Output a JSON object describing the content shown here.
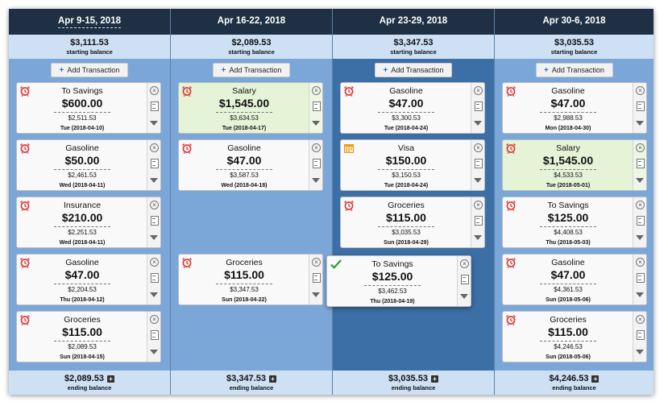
{
  "columns": [
    {
      "header": "Apr 9-15, 2018",
      "starting_balance": "$3,111.53",
      "starting_label": "starting balance",
      "add_label": "Add Transaction",
      "ending_balance": "$2,089.53",
      "ending_label": "ending balance",
      "cards": [
        {
          "name": "To Savings",
          "amount": "$600.00",
          "balance": "$2,511.53",
          "date": "Tue (2018-04-10)",
          "icon": "alarm-icon",
          "color": "default"
        },
        {
          "name": "Gasoline",
          "amount": "$50.00",
          "balance": "$2,461.53",
          "date": "Wed (2018-04-11)",
          "icon": "alarm-icon",
          "color": "default"
        },
        {
          "name": "Insurance",
          "amount": "$210.00",
          "balance": "$2,251.53",
          "date": "Wed (2018-04-11)",
          "icon": "alarm-icon",
          "color": "default"
        },
        {
          "name": "Gasoline",
          "amount": "$47.00",
          "balance": "$2,204.53",
          "date": "Thu (2018-04-12)",
          "icon": "alarm-icon",
          "color": "default"
        },
        {
          "name": "Groceries",
          "amount": "$115.00",
          "balance": "$2,089.53",
          "date": "Sun (2018-04-15)",
          "icon": "alarm-icon",
          "color": "default"
        }
      ]
    },
    {
      "header": "Apr 16-22, 2018",
      "starting_balance": "$2,089.53",
      "starting_label": "starting balance",
      "add_label": "Add Transaction",
      "ending_balance": "$3,347.53",
      "ending_label": "ending balance",
      "cards": [
        {
          "name": "Salary",
          "amount": "$1,545.00",
          "balance": "$3,634.53",
          "date": "Tue (2018-04-17)",
          "icon": "alarm-icon",
          "color": "green"
        },
        {
          "name": "Gasoline",
          "amount": "$47.00",
          "balance": "$3,587.53",
          "date": "Wed (2018-04-18)",
          "icon": "alarm-icon",
          "color": "default"
        },
        {
          "name": "Groceries",
          "amount": "$115.00",
          "balance": "$3,347.53",
          "date": "Sun (2018-04-22)",
          "icon": "alarm-icon",
          "color": "default"
        }
      ]
    },
    {
      "header": "Apr 23-29, 2018",
      "starting_balance": "$3,347.53",
      "starting_label": "starting balance",
      "add_label": "Add Transaction",
      "ending_balance": "$3,035.53",
      "ending_label": "ending balance",
      "cards": [
        {
          "name": "Gasoline",
          "amount": "$47.00",
          "balance": "$3,300.53",
          "date": "Tue (2018-04-24)",
          "icon": "alarm-icon",
          "color": "default"
        },
        {
          "name": "Visa",
          "amount": "$150.00",
          "balance": "$3,150.53",
          "date": "Tue (2018-04-24)",
          "icon": "calendar-icon",
          "color": "default"
        },
        {
          "name": "Groceries",
          "amount": "$115.00",
          "balance": "$3,035.53",
          "date": "Sun (2018-04-29)",
          "icon": "alarm-icon",
          "color": "default"
        }
      ],
      "dragging_card": {
        "name": "To Savings",
        "amount": "$125.00",
        "balance": "$3,462.53",
        "date": "Thu (2018-04-19)",
        "icon": "check-icon",
        "color": "default"
      }
    },
    {
      "header": "Apr 30-6, 2018",
      "starting_balance": "$3,035.53",
      "starting_label": "starting balance",
      "add_label": "Add Transaction",
      "ending_balance": "$4,246.53",
      "ending_label": "ending balance",
      "cards": [
        {
          "name": "Gasoline",
          "amount": "$47.00",
          "balance": "$2,988.53",
          "date": "Mon (2018-04-30)",
          "icon": "alarm-icon",
          "color": "default"
        },
        {
          "name": "Salary",
          "amount": "$1,545.00",
          "balance": "$4,533.53",
          "date": "Tue (2018-05-01)",
          "icon": "alarm-icon",
          "color": "green"
        },
        {
          "name": "To Savings",
          "amount": "$125.00",
          "balance": "$4,408.53",
          "date": "Thu (2018-05-03)",
          "icon": "alarm-icon",
          "color": "default"
        },
        {
          "name": "Gasoline",
          "amount": "$47.00",
          "balance": "$4,361.53",
          "date": "Sun (2018-05-06)",
          "icon": "alarm-icon",
          "color": "default"
        },
        {
          "name": "Groceries",
          "amount": "$115.00",
          "balance": "$4,246.53",
          "date": "Sun (2018-05-06)",
          "icon": "alarm-icon",
          "color": "default"
        }
      ]
    }
  ],
  "colors": {
    "header_bg": "#1f3044",
    "balance_bg": "#cde0f4",
    "column_bg": "#7ba7d8",
    "selected_column_bg": "#3b6fa6",
    "income_card": "#e5f3d7",
    "alarm": "#dd3333",
    "check": "#2e9a2e",
    "calendar": "#f0a020"
  }
}
